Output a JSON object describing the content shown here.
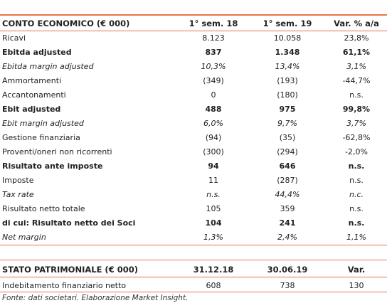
{
  "income": {
    "header": [
      "CONTO ECONOMICO (€ 000)",
      "1° sem. 18",
      "1° sem. 19",
      "Var. % a/a"
    ],
    "rows": [
      {
        "label": "Ricavi",
        "v1": "8.123",
        "v2": "10.058",
        "v3": "23,8%",
        "style": ""
      },
      {
        "label": "Ebitda adjusted",
        "v1": "837",
        "v2": "1.348",
        "v3": "61,1%",
        "style": "b"
      },
      {
        "label": "Ebitda margin adjusted",
        "v1": "10,3%",
        "v2": "13,4%",
        "v3": "3,1%",
        "style": "i"
      },
      {
        "label": "Ammortamenti",
        "v1": "(349)",
        "v2": "(193)",
        "v3": "-44,7%",
        "style": ""
      },
      {
        "label": "Accantonamenti",
        "v1": "0",
        "v2": "(180)",
        "v3": "n.s.",
        "style": ""
      },
      {
        "label": "Ebit adjusted",
        "v1": "488",
        "v2": "975",
        "v3": "99,8%",
        "style": "b"
      },
      {
        "label": "Ebit margin adjusted",
        "v1": "6,0%",
        "v2": "9,7%",
        "v3": "3,7%",
        "style": "i"
      },
      {
        "label": "Gestione finanziaria",
        "v1": "(94)",
        "v2": "(35)",
        "v3": "-62,8%",
        "style": ""
      },
      {
        "label": "Proventi/oneri non ricorrenti",
        "v1": "(300)",
        "v2": "(294)",
        "v3": "-2,0%",
        "style": ""
      },
      {
        "label": "Risultato ante imposte",
        "v1": "94",
        "v2": "646",
        "v3": "n.s.",
        "style": "b"
      },
      {
        "label": "Imposte",
        "v1": "11",
        "v2": "(287)",
        "v3": "n.s.",
        "style": ""
      },
      {
        "label": "Tax rate",
        "v1": "n.s.",
        "v2": "44,4%",
        "v3": "n.c.",
        "style": "i"
      },
      {
        "label": "Risultato netto totale",
        "v1": "105",
        "v2": "359",
        "v3": "n.s.",
        "style": ""
      },
      {
        "label": "di cui: Risultato netto dei Soci",
        "v1": "104",
        "v2": "241",
        "v3": "n.s.",
        "style": "b"
      },
      {
        "label": "Net margin",
        "v1": "1,3%",
        "v2": "2,4%",
        "v3": "1,1%",
        "style": "i"
      }
    ]
  },
  "balance": {
    "header": [
      "STATO PATRIMONIALE (€ 000)",
      "31.12.18",
      "30.06.19",
      "Var."
    ],
    "rows": [
      {
        "label": "Indebitamento finanziario netto",
        "v1": "608",
        "v2": "738",
        "v3": "130",
        "style": ""
      }
    ]
  },
  "source_note": "Fonte: dati societari. Elaborazione Market Insight.",
  "colors": {
    "rule": "#e8734a"
  }
}
